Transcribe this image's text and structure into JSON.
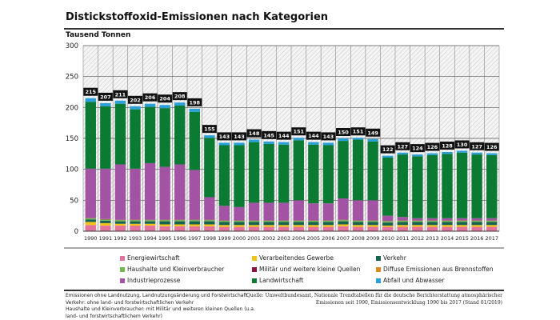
{
  "chart_data": {
    "type": "bar",
    "stacked": true,
    "title": "Distickstoffoxid-Emissionen nach Kategorien",
    "ylabel": "Tausend Tonnen",
    "ylim": [
      0,
      300
    ],
    "yticks": [
      0,
      50,
      100,
      150,
      200,
      250,
      300
    ],
    "categories": [
      "1990",
      "1991",
      "1992",
      "1993",
      "1994",
      "1995",
      "1996",
      "1997",
      "1998",
      "1999",
      "2000",
      "2001",
      "2002",
      "2003",
      "2004",
      "2005",
      "2006",
      "2007",
      "2008",
      "2009",
      "2010",
      "2011",
      "2012",
      "2013",
      "2014",
      "2015",
      "2016",
      "2017"
    ],
    "totals": [
      215,
      207,
      211,
      202,
      206,
      204,
      208,
      198,
      155,
      143,
      143,
      148,
      145,
      144,
      151,
      144,
      143,
      150,
      151,
      149,
      122,
      127,
      124,
      126,
      128,
      130,
      127,
      126
    ],
    "series": [
      {
        "name": "Energiewirtschaft",
        "color": "#e2739c",
        "values": [
          10,
          9,
          9,
          9,
          9,
          8,
          8,
          8,
          8,
          7,
          7,
          7,
          7,
          7,
          7,
          7,
          7,
          8,
          7,
          7,
          7,
          7,
          7,
          7,
          7,
          7,
          7,
          7
        ]
      },
      {
        "name": "Verarbeitendes Gewerbe",
        "color": "#f3c21a",
        "values": [
          5,
          4,
          3,
          3,
          3,
          3,
          3,
          3,
          3,
          3,
          3,
          3,
          3,
          3,
          3,
          3,
          3,
          3,
          3,
          3,
          2,
          3,
          3,
          3,
          3,
          3,
          3,
          3
        ]
      },
      {
        "name": "Verkehr",
        "color": "#17634f",
        "values": [
          4,
          4,
          4,
          4,
          4,
          5,
          5,
          5,
          5,
          5,
          5,
          5,
          5,
          5,
          5,
          5,
          5,
          5,
          5,
          5,
          5,
          5,
          5,
          5,
          5,
          5,
          5,
          5
        ]
      },
      {
        "name": "Haushalte und Kleinverbraucher",
        "color": "#72b84c",
        "values": [
          2,
          2,
          2,
          2,
          2,
          2,
          2,
          2,
          2,
          2,
          2,
          2,
          2,
          2,
          2,
          2,
          2,
          2,
          2,
          2,
          2,
          2,
          2,
          2,
          2,
          2,
          2,
          2
        ]
      },
      {
        "name": "Militär und weitere kleine Quellen",
        "color": "#8a1140",
        "values": [
          0.4,
          0.4,
          0.4,
          0.4,
          0.4,
          0.4,
          0.4,
          0.4,
          0.4,
          0.4,
          0.4,
          0.4,
          0.4,
          0.4,
          0.4,
          0.4,
          0.4,
          0.4,
          0.4,
          0.4,
          0.4,
          0.4,
          0.4,
          0.4,
          0.4,
          0.4,
          0.4,
          0.4
        ]
      },
      {
        "name": "Diffuse Emissionen aus Brennstoffen",
        "color": "#d98b22",
        "values": [
          0.2,
          0.2,
          0.2,
          0.2,
          0.2,
          0.2,
          0.2,
          0.2,
          0.2,
          0.2,
          0.2,
          0.2,
          0.2,
          0.2,
          0.2,
          0.2,
          0.2,
          0.2,
          0.2,
          0.2,
          0.2,
          0.2,
          0.2,
          0.2,
          0.2,
          0.2,
          0.2,
          0.2
        ]
      },
      {
        "name": "Industrieprozesse",
        "color": "#a253a3",
        "values": [
          79.4,
          81.4,
          89.4,
          82.4,
          91.4,
          85.4,
          89.4,
          80.4,
          36.4,
          23.4,
          21.4,
          28.4,
          28.4,
          28.4,
          32.4,
          27.4,
          27.4,
          34.4,
          32.4,
          32.4,
          8.4,
          5.4,
          3.4,
          3.4,
          3.4,
          3.4,
          3.4,
          3.4
        ]
      },
      {
        "name": "Landwirtschaft",
        "color": "#0b7a32",
        "values": [
          108,
          101,
          98,
          96,
          91,
          95,
          95,
          94,
          96,
          98,
          100,
          98,
          95,
          94,
          97,
          95,
          94,
          93,
          98,
          95,
          94,
          101,
          100,
          102,
          104,
          106,
          103,
          102
        ]
      },
      {
        "name": "Abfall und Abwasser",
        "color": "#2a9fd8",
        "values": [
          6,
          5,
          5,
          5,
          5,
          5,
          5,
          5,
          4,
          4,
          4,
          4,
          4,
          4,
          4,
          4,
          4,
          4,
          3,
          4,
          3,
          3,
          3,
          3,
          3,
          3,
          3,
          3
        ]
      }
    ],
    "legend_order": [
      0,
      1,
      2,
      3,
      4,
      5,
      6,
      7,
      8
    ],
    "legend_placement": "bottom"
  },
  "notes": [
    "Emissionen ohne Landnutzung, Landnutzungsänderung und Forstwirtschaft",
    "Verkehr: ohne land- und forstwirtschaftlichen Verkehr",
    "Haushalte und Kleinverbraucher: mit Militär und weiteren kleinen Quellen (u.a.",
    "land- und forstwirtschaftlichem Verkehr)"
  ],
  "source": [
    "Quelle: Umweltbundesamt, Nationale Trendtabellen für die deutsche Berichterstattung atmosphärischer",
    "Emissionen seit 1990, Emissionsentwicklung 1990 bis 2017 (Stand 01/2019)"
  ]
}
